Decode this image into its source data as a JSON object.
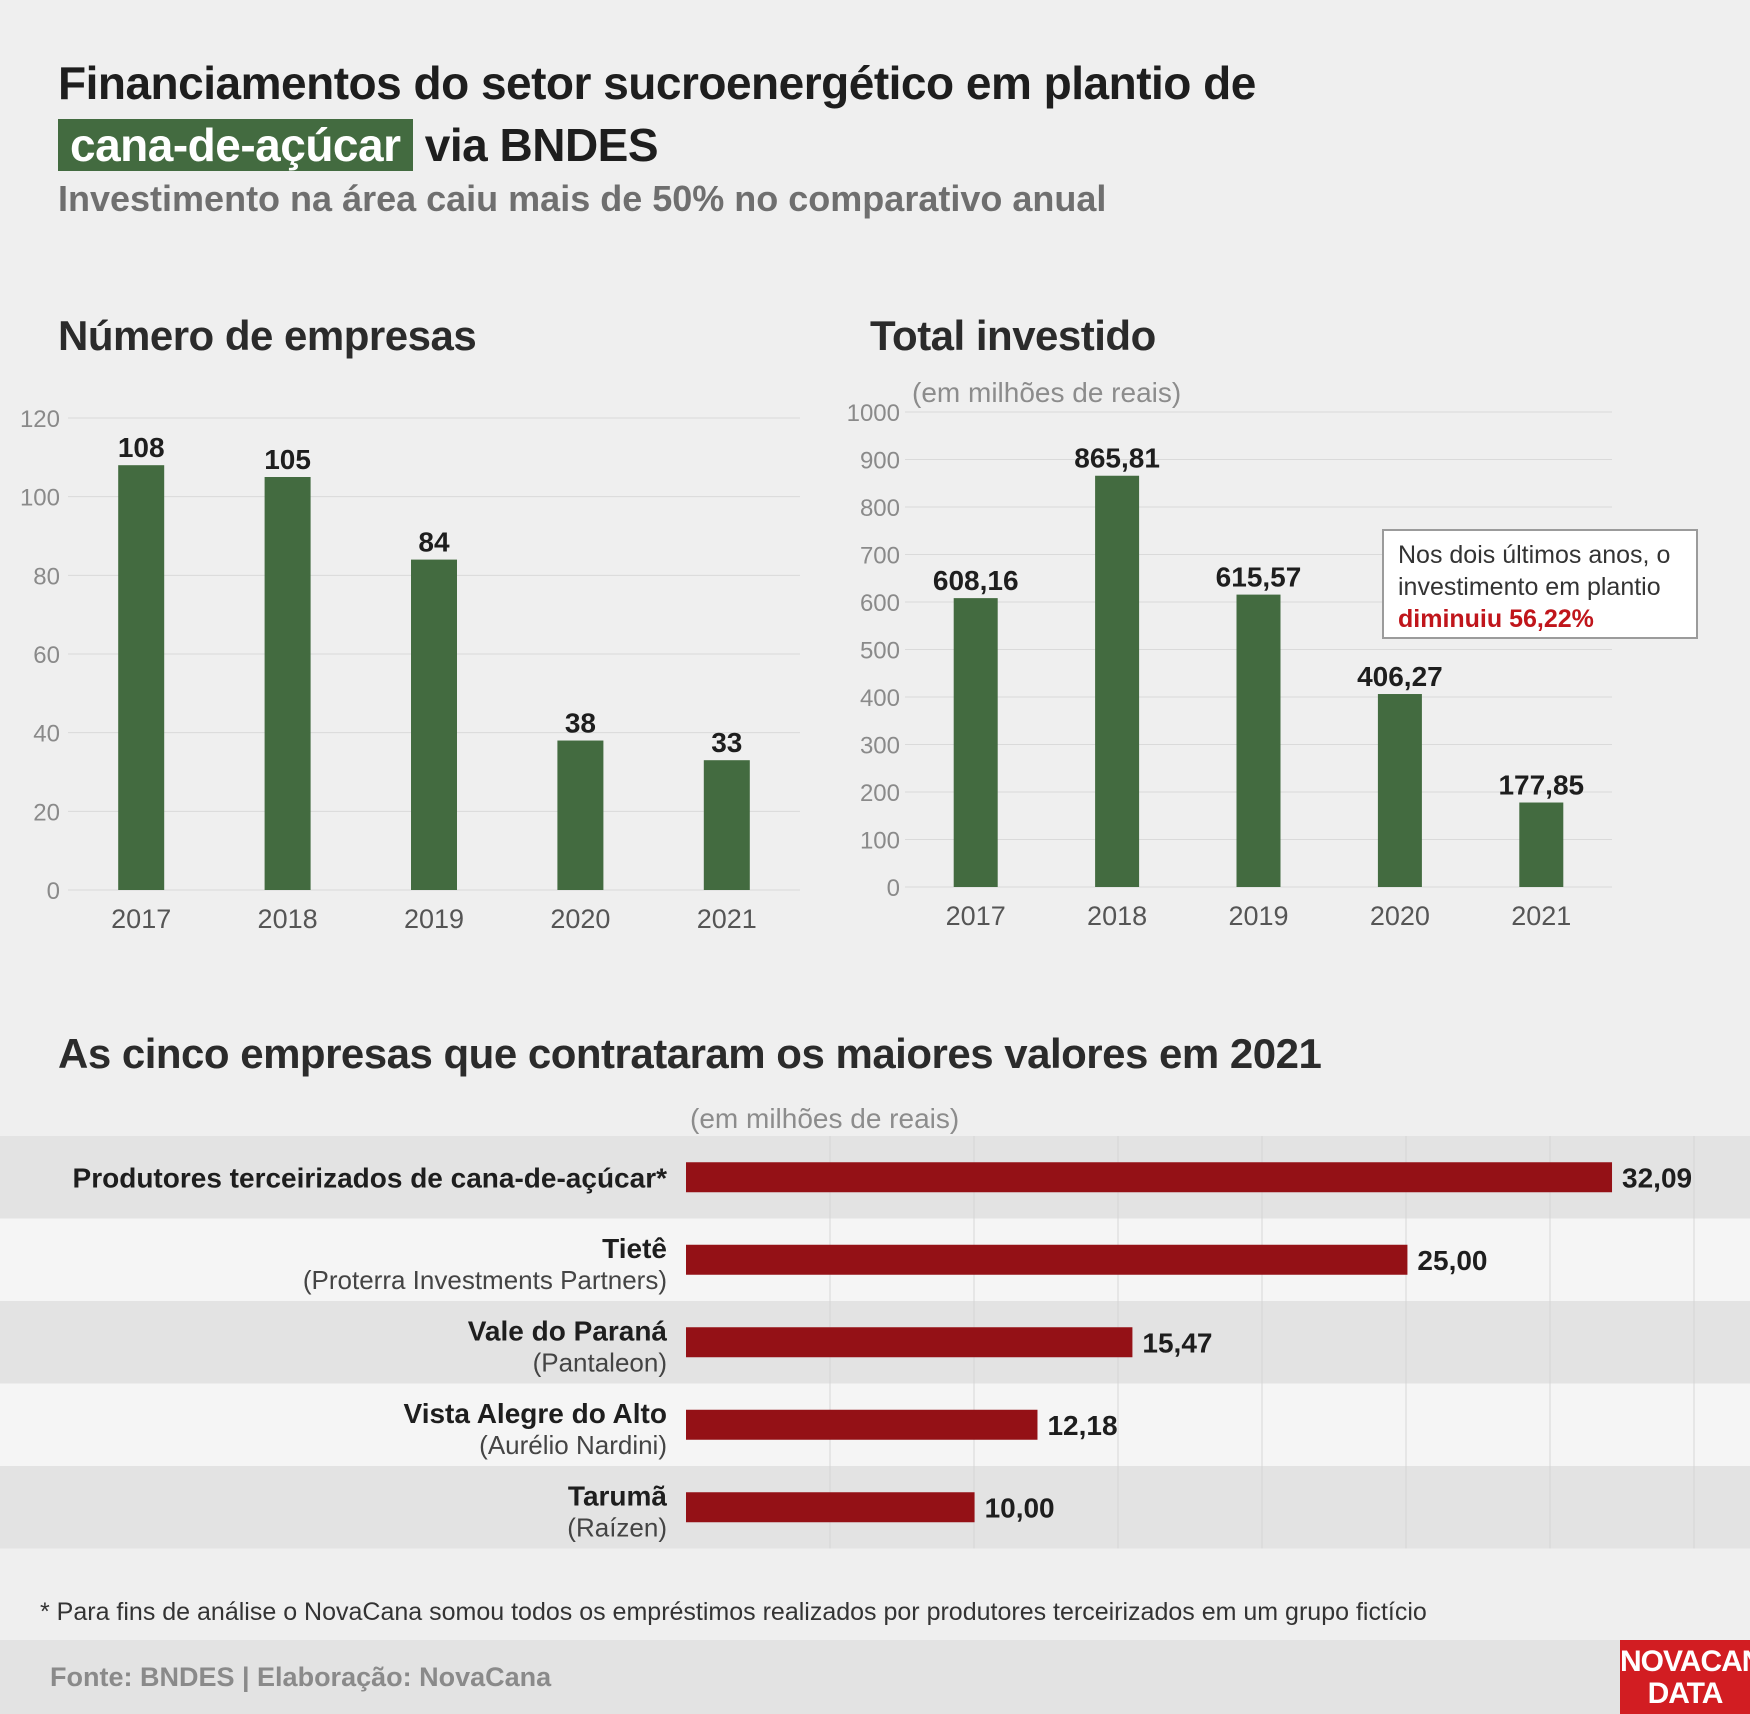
{
  "header": {
    "title_part1": "Financiamentos do setor sucroenergético em plantio de",
    "title_highlight": "cana-de-açúcar",
    "title_part2": "via BNDES",
    "subtitle": "Investimento na área caiu mais de 50% no comparativo anual"
  },
  "callout": {
    "text": "Nos dois últimos anos, o investimento em plantio",
    "highlight": "diminuiu 56,22%"
  },
  "footnote": "* Para fins de análise o NovaCana somou todos os empréstimos realizados por produtores terceirizados em um grupo fictício",
  "footer": {
    "source": "Fonte: BNDES | Elaboração: NovaCana",
    "logo_line1": "NOVACANA",
    "logo_line2": "DATA"
  },
  "colors": {
    "green": "#436b40",
    "red": "#941116",
    "callout_red": "#c0151b"
  },
  "chart_data": [
    {
      "type": "bar",
      "title": "Número de empresas",
      "categories": [
        "2017",
        "2018",
        "2019",
        "2020",
        "2021"
      ],
      "values": [
        108,
        105,
        84,
        38,
        33
      ],
      "value_labels": [
        "108",
        "105",
        "84",
        "38",
        "33"
      ],
      "yticks": [
        0,
        20,
        40,
        60,
        80,
        100,
        120
      ],
      "ylim": [
        0,
        120
      ],
      "grid": true
    },
    {
      "type": "bar",
      "title": "Total investido",
      "unit": "(em milhões de reais)",
      "categories": [
        "2017",
        "2018",
        "2019",
        "2020",
        "2021"
      ],
      "values": [
        608.16,
        865.81,
        615.57,
        406.27,
        177.85
      ],
      "value_labels": [
        "608,16",
        "865,81",
        "615,57",
        "406,27",
        "177,85"
      ],
      "yticks": [
        0,
        100,
        200,
        300,
        400,
        500,
        600,
        700,
        800,
        900,
        1000
      ],
      "ylim": [
        0,
        1000
      ],
      "grid": true
    },
    {
      "type": "bar",
      "orientation": "horizontal",
      "title": "As cinco empresas que contrataram os maiores valores em 2021",
      "unit": "(em milhões de reais)",
      "categories": [
        {
          "name": "Produtores terceirizados de cana-de-açúcar*",
          "sub": ""
        },
        {
          "name": "Tietê",
          "sub": "(Proterra Investments Partners)"
        },
        {
          "name": "Vale do Paraná",
          "sub": "(Pantaleon)"
        },
        {
          "name": "Vista Alegre do Alto",
          "sub": "(Aurélio Nardini)"
        },
        {
          "name": "Tarumã",
          "sub": "(Raízen)"
        }
      ],
      "values": [
        32.09,
        25.0,
        15.47,
        12.18,
        10.0
      ],
      "value_labels": [
        "32,09",
        "25,00",
        "15,47",
        "12,18",
        "10,00"
      ],
      "xlim": [
        0,
        35
      ],
      "grid": true
    }
  ]
}
